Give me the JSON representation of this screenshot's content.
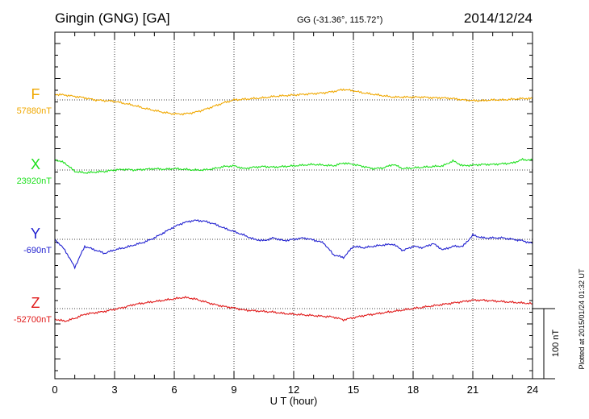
{
  "header": {
    "station": "Gingin (GNG)  [GA]",
    "coords": "GG (-31.36°, 115.72°)",
    "date": "2014/12/24"
  },
  "footer": {
    "plotted": "Plotted at 2015/01/24 01:32 UT",
    "scale_label": "100 nT"
  },
  "chart_data": {
    "type": "line",
    "xlabel": "U T (hour)",
    "xlim": [
      0,
      24
    ],
    "xticks": [
      "0",
      "3",
      "6",
      "9",
      "12",
      "15",
      "18",
      "21",
      "24"
    ],
    "x_hours": [
      0,
      0.5,
      1,
      1.5,
      2,
      2.5,
      3,
      3.5,
      4,
      4.5,
      5,
      5.5,
      6,
      6.5,
      7,
      7.5,
      8,
      8.5,
      9,
      9.5,
      10,
      10.5,
      11,
      11.5,
      12,
      12.5,
      13,
      13.5,
      14,
      14.5,
      15,
      15.5,
      16,
      16.5,
      17,
      17.5,
      18,
      18.5,
      19,
      19.5,
      20,
      20.5,
      21,
      21.5,
      22,
      22.5,
      23,
      23.5,
      24
    ],
    "scale_bar_nT": 100,
    "series": [
      {
        "name": "F",
        "baseline_label": "57880nT",
        "baseline_nT": 57880,
        "color": "#f0a800",
        "values": [
          57888,
          57887,
          57885,
          57883,
          57880,
          57879,
          57878,
          57875,
          57872,
          57868,
          57865,
          57862,
          57860,
          57860,
          57862,
          57866,
          57871,
          57876,
          57880,
          57881,
          57882,
          57883,
          57885,
          57886,
          57887,
          57888,
          57889,
          57890,
          57892,
          57895,
          57893,
          57890,
          57888,
          57886,
          57884,
          57884,
          57884,
          57884,
          57883,
          57883,
          57882,
          57880,
          57879,
          57879,
          57880,
          57880,
          57881,
          57882,
          57882
        ]
      },
      {
        "name": "X",
        "baseline_label": "23920nT",
        "baseline_nT": 23920,
        "color": "#20e020",
        "values": [
          23935,
          23930,
          23918,
          23916,
          23917,
          23918,
          23920,
          23921,
          23920,
          23921,
          23922,
          23921,
          23922,
          23921,
          23920,
          23920,
          23922,
          23925,
          23926,
          23922,
          23924,
          23925,
          23924,
          23925,
          23926,
          23927,
          23928,
          23927,
          23926,
          23930,
          23928,
          23925,
          23922,
          23923,
          23928,
          23922,
          23923,
          23924,
          23925,
          23926,
          23933,
          23926,
          23927,
          23928,
          23928,
          23929,
          23930,
          23935,
          23934
        ]
      },
      {
        "name": "Y",
        "baseline_label": "-690nT",
        "baseline_nT": -690,
        "color": "#2020d0",
        "values": [
          -690,
          -705,
          -730,
          -700,
          -705,
          -710,
          -705,
          -702,
          -698,
          -694,
          -688,
          -680,
          -672,
          -666,
          -663,
          -664,
          -668,
          -674,
          -679,
          -684,
          -690,
          -692,
          -688,
          -692,
          -690,
          -688,
          -691,
          -695,
          -712,
          -716,
          -700,
          -702,
          -700,
          -698,
          -697,
          -706,
          -700,
          -702,
          -696,
          -705,
          -700,
          -700,
          -684,
          -688,
          -688,
          -688,
          -690,
          -692,
          -696
        ]
      },
      {
        "name": "Z",
        "baseline_label": "-52700nT",
        "baseline_nT": -52700,
        "color": "#e01818",
        "values": [
          -52715,
          -52718,
          -52714,
          -52708,
          -52706,
          -52704,
          -52701,
          -52698,
          -52694,
          -52692,
          -52690,
          -52688,
          -52686,
          -52684,
          -52686,
          -52690,
          -52694,
          -52697,
          -52699,
          -52702,
          -52703,
          -52704,
          -52705,
          -52707,
          -52708,
          -52709,
          -52710,
          -52711,
          -52712,
          -52716,
          -52713,
          -52710,
          -52708,
          -52706,
          -52704,
          -52702,
          -52700,
          -52698,
          -52696,
          -52694,
          -52692,
          -52690,
          -52688,
          -52688,
          -52689,
          -52690,
          -52691,
          -52692,
          -52693
        ]
      }
    ]
  }
}
